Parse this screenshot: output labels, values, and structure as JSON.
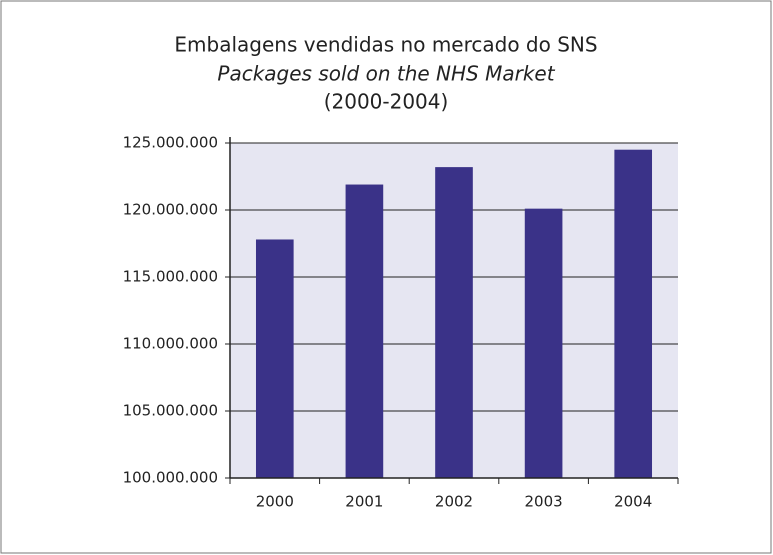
{
  "chart_data": {
    "type": "bar",
    "title": "Embalagens vendidas no mercado do SNS",
    "subtitle": "Packages sold on the NHS Market",
    "date_range": "(2000-2004)",
    "categories": [
      "2000",
      "2001",
      "2002",
      "2003",
      "2004"
    ],
    "values": [
      117800000,
      121900000,
      123200000,
      120100000,
      124500000
    ],
    "color": "#3a3288",
    "ylim": [
      100000000,
      125000000
    ],
    "yticks": [
      {
        "value": 100000000,
        "label": "100.000.000"
      },
      {
        "value": 105000000,
        "label": "105.000.000"
      },
      {
        "value": 110000000,
        "label": "110.000.000"
      },
      {
        "value": 115000000,
        "label": "115.000.000"
      },
      {
        "value": 120000000,
        "label": "120.000.000"
      },
      {
        "value": 125000000,
        "label": "125.000.000"
      }
    ],
    "grid": true
  }
}
